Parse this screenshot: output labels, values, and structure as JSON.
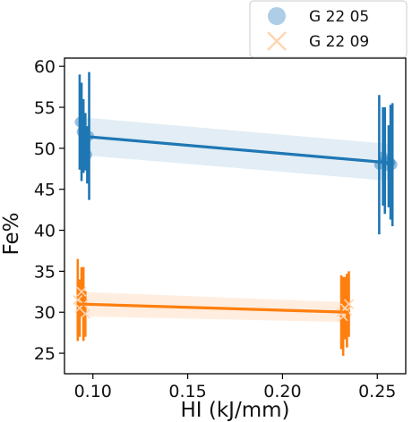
{
  "chart_data": {
    "type": "scatter",
    "title": "",
    "xlabel": "HI (kJ/mm)",
    "ylabel": "Fe%",
    "xlim": [
      0.085,
      0.265
    ],
    "ylim": [
      22.5,
      61
    ],
    "xticks": [
      0.1,
      0.15,
      0.2,
      0.25
    ],
    "xtick_labels": [
      "0.10",
      "0.15",
      "0.20",
      "0.25"
    ],
    "yticks": [
      25,
      30,
      35,
      40,
      45,
      50,
      55,
      60
    ],
    "ytick_labels": [
      "25",
      "30",
      "35",
      "40",
      "45",
      "50",
      "55",
      "60"
    ],
    "grid": false,
    "legend_position": "top-right",
    "series": [
      {
        "name": "G 22 05",
        "marker": "circle",
        "color": "#1f77b4",
        "marker_color": "#aecde6",
        "points": [
          {
            "x": 0.093,
            "y": 53.2,
            "err": 5.8
          },
          {
            "x": 0.094,
            "y": 52.0,
            "err": 6.0
          },
          {
            "x": 0.095,
            "y": 51.5,
            "err": 4.5
          },
          {
            "x": 0.096,
            "y": 50.8,
            "err": 3.5
          },
          {
            "x": 0.097,
            "y": 49.2,
            "err": 3.5
          },
          {
            "x": 0.098,
            "y": 51.5,
            "err": 7.8
          },
          {
            "x": 0.251,
            "y": 48.0,
            "err": 8.5
          },
          {
            "x": 0.253,
            "y": 49.0,
            "err": 6.0
          },
          {
            "x": 0.254,
            "y": 48.5,
            "err": 6.5
          },
          {
            "x": 0.256,
            "y": 47.8,
            "err": 5.0
          },
          {
            "x": 0.257,
            "y": 48.3,
            "err": 7.0
          },
          {
            "x": 0.258,
            "y": 48.0,
            "err": 7.5
          }
        ],
        "fit": {
          "x": [
            0.093,
            0.258
          ],
          "y": [
            51.5,
            48.2
          ]
        },
        "band": {
          "x": [
            0.093,
            0.258
          ],
          "lower": [
            49.2,
            46.0
          ],
          "upper": [
            53.8,
            50.5
          ]
        }
      },
      {
        "name": "G 22 09",
        "marker": "x",
        "color": "#ff7f0e",
        "marker_color": "#ffd5b0",
        "points": [
          {
            "x": 0.092,
            "y": 31.5,
            "err": 5.0
          },
          {
            "x": 0.093,
            "y": 30.5,
            "err": 3.5
          },
          {
            "x": 0.094,
            "y": 32.5,
            "err": 3.0
          },
          {
            "x": 0.095,
            "y": 31.0,
            "err": 4.5
          },
          {
            "x": 0.096,
            "y": 29.8,
            "err": 2.8
          },
          {
            "x": 0.231,
            "y": 30.0,
            "err": 4.5
          },
          {
            "x": 0.232,
            "y": 29.5,
            "err": 4.8
          },
          {
            "x": 0.233,
            "y": 30.5,
            "err": 3.8
          },
          {
            "x": 0.234,
            "y": 30.2,
            "err": 4.5
          },
          {
            "x": 0.235,
            "y": 31.0,
            "err": 4.0
          }
        ],
        "fit": {
          "x": [
            0.093,
            0.235
          ],
          "y": [
            31.0,
            30.0
          ]
        },
        "band": {
          "x": [
            0.093,
            0.235
          ],
          "lower": [
            29.5,
            28.8
          ],
          "upper": [
            32.5,
            31.2
          ]
        }
      }
    ]
  }
}
